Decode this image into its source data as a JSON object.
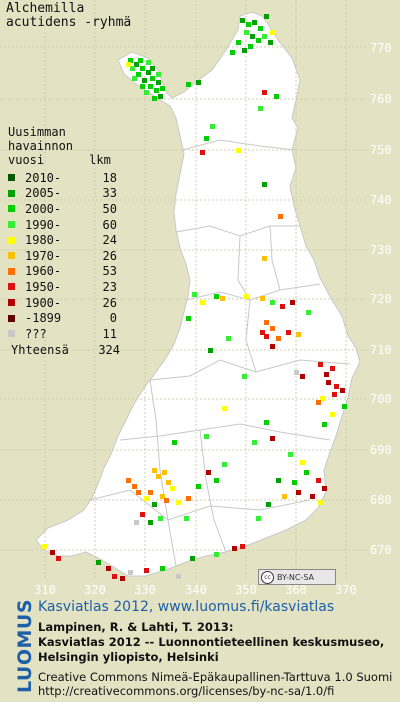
{
  "title": {
    "line1": "Alchemilla",
    "line2": "acutidens -ryhmä"
  },
  "legend": {
    "header": [
      "Uusimman",
      "havainnon"
    ],
    "vuosi_label": "vuosi",
    "lkm_label": "lkm",
    "items": [
      {
        "label": "2010-",
        "count": "18",
        "color": "#005a00"
      },
      {
        "label": "2005-",
        "count": "33",
        "color": "#00a000"
      },
      {
        "label": "2000-",
        "count": "50",
        "color": "#00d000"
      },
      {
        "label": "1990-",
        "count": "60",
        "color": "#33ee33"
      },
      {
        "label": "1980-",
        "count": "24",
        "color": "#ffff00"
      },
      {
        "label": "1970-",
        "count": "26",
        "color": "#ffc000"
      },
      {
        "label": "1960-",
        "count": "53",
        "color": "#ff7000"
      },
      {
        "label": "1950-",
        "count": "23",
        "color": "#e01010"
      },
      {
        "label": "1900-",
        "count": "26",
        "color": "#b00000"
      },
      {
        "label": "-1899",
        "count": "0",
        "color": "#600000"
      },
      {
        "label": "???",
        "count": "11",
        "color": "#c8c8c8"
      }
    ],
    "total_label": "Yhteensä",
    "total_count": "324"
  },
  "grid": {
    "y_ticks": [
      "770",
      "760",
      "750",
      "740",
      "730",
      "720",
      "710",
      "700",
      "690",
      "680",
      "670"
    ],
    "x_ticks": [
      "310",
      "320",
      "330",
      "340",
      "350",
      "360",
      "370"
    ]
  },
  "cc_badge": "BY-NC-SA",
  "cc_symbol": "cc",
  "brand": "LUOMUS",
  "site_text": "Kasviatlas 2012, www.luomus.fi/kasviatlas",
  "reference": [
    "Lampinen, R. & Lahti, T. 2013:",
    "Kasviatlas 2012 -- Luonnontieteellinen keskusmuseo,",
    "Helsingin yliopisto, Helsinki"
  ],
  "license": [
    "Creative Commons Nimeä-Epäkaupallinen-Tarttuva 1.0 Suomi",
    "http://creativecommons.org/licenses/by-nc-sa/1.0/fi"
  ]
}
